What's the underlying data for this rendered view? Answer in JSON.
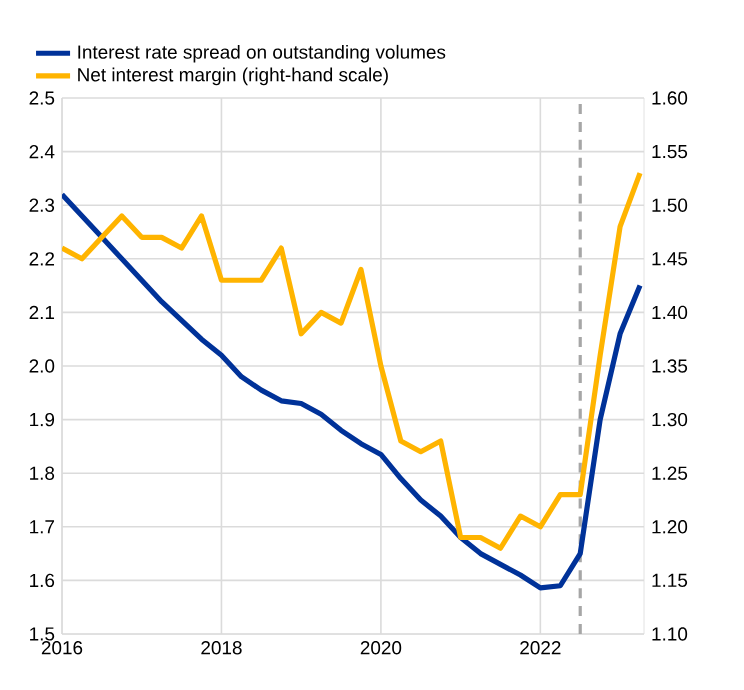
{
  "chart_data": {
    "type": "line",
    "x": [
      2016,
      2016.25,
      2016.5,
      2016.75,
      2017,
      2017.25,
      2017.5,
      2017.75,
      2018,
      2018.25,
      2018.5,
      2018.75,
      2019,
      2019.25,
      2019.5,
      2019.75,
      2020,
      2020.25,
      2020.5,
      2020.75,
      2021,
      2021.25,
      2021.5,
      2021.75,
      2022,
      2022.25,
      2022.5,
      2022.75,
      2023,
      2023.25
    ],
    "series": [
      {
        "name": "Interest rate spread on outstanding volumes",
        "color": "#003299",
        "axis": "y",
        "values": [
          2.32,
          2.28,
          2.24,
          2.2,
          2.16,
          2.12,
          2.085,
          2.05,
          2.02,
          1.98,
          1.955,
          1.935,
          1.93,
          1.91,
          1.88,
          1.855,
          1.835,
          1.79,
          1.75,
          1.72,
          1.68,
          1.65,
          1.63,
          1.61,
          1.586,
          1.59,
          1.65,
          1.9,
          2.06,
          2.15
        ]
      },
      {
        "name": "Net interest margin (right-hand scale)",
        "color": "#ffb400",
        "axis": "y2",
        "values": [
          1.46,
          1.45,
          1.47,
          1.49,
          1.47,
          1.47,
          1.46,
          1.49,
          1.43,
          1.43,
          1.43,
          1.46,
          1.38,
          1.4,
          1.39,
          1.44,
          1.35,
          1.28,
          1.27,
          1.28,
          1.19,
          1.19,
          1.18,
          1.21,
          1.2,
          1.23,
          1.23,
          1.36,
          1.48,
          1.53
        ]
      }
    ],
    "xlim": [
      2016,
      2023.3
    ],
    "xticks": [
      2016,
      2018,
      2020,
      2022
    ],
    "ylim": [
      1.5,
      2.5
    ],
    "yticks": [
      {
        "value": 1.5,
        "label": "1.5"
      },
      1.6,
      1.7,
      1.8,
      1.9,
      {
        "value": 2.0,
        "label": "2.0"
      },
      2.1,
      2.2,
      2.3,
      2.4,
      {
        "value": 2.5,
        "label": "2.5"
      }
    ],
    "y2lim": [
      1.1,
      1.6
    ],
    "y2ticks": [
      {
        "value": 1.1,
        "label": "1.10"
      },
      1.15,
      {
        "value": 1.2,
        "label": "1.20"
      },
      1.25,
      {
        "value": 1.3,
        "label": "1.30"
      },
      1.35,
      {
        "value": 1.4,
        "label": "1.40"
      },
      1.45,
      {
        "value": 1.5,
        "label": "1.50"
      },
      1.55,
      {
        "value": 1.6,
        "label": "1.60"
      }
    ],
    "grid": true,
    "legend": "top",
    "ref_lines": [
      {
        "axis": "x",
        "value": 2022.5,
        "color": "#a6a6a6",
        "line_style": "dashed"
      }
    ]
  }
}
